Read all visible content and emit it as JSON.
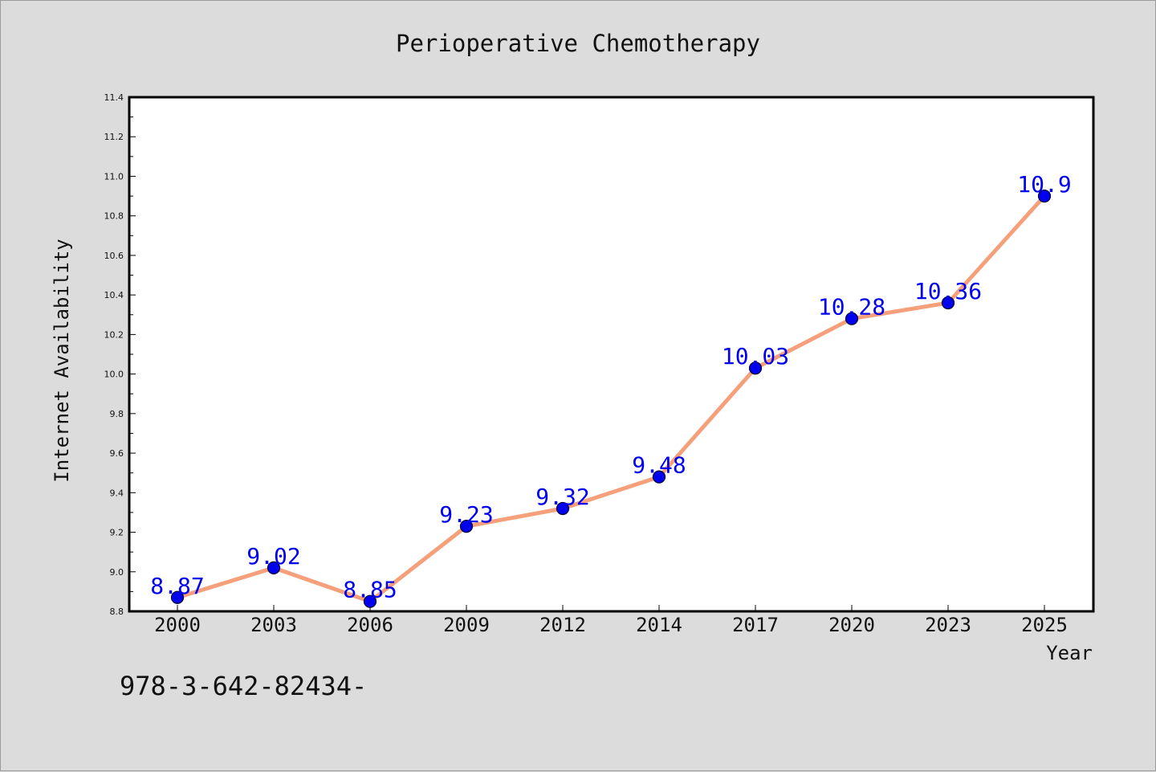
{
  "chart_data": {
    "type": "line",
    "title": "Perioperative Chemotherapy",
    "xlabel": "Year",
    "ylabel": "Internet Availability",
    "categories": [
      "2000",
      "2003",
      "2006",
      "2009",
      "2012",
      "2014",
      "2017",
      "2020",
      "2023",
      "2025"
    ],
    "series": [
      {
        "values": [
          8.87,
          9.02,
          8.85,
          9.23,
          9.32,
          9.48,
          10.03,
          10.28,
          10.36,
          10.9
        ],
        "labels": [
          "8.87",
          "9.02",
          "8.85",
          "9.23",
          "9.32",
          "9.48",
          "10.03",
          "10.28",
          "10.36",
          "10.9"
        ]
      }
    ],
    "ylim": [
      8.8,
      11.4
    ],
    "yticks": [
      "8.8",
      "9.0",
      "9.2",
      "9.4",
      "9.6",
      "9.8",
      "10.0",
      "10.2",
      "10.4",
      "10.6",
      "10.8",
      "11.0",
      "11.2",
      "11.4"
    ],
    "grid": false,
    "colors": {
      "line": "#f5a07a",
      "marker": "#0000ee",
      "marker_edge": "#000033",
      "label": "#0000ee",
      "plot_bg": "#ffffff",
      "page_bg": "#dcdcdc"
    }
  },
  "footer": {
    "text": "978-3-642-82434-"
  }
}
